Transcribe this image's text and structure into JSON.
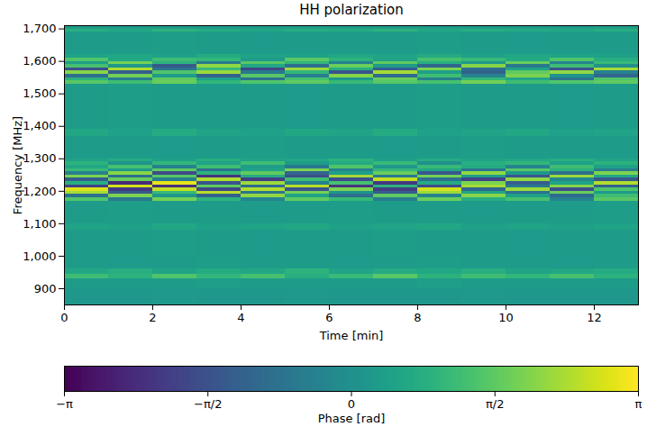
{
  "chart_data": {
    "type": "heatmap",
    "title": "HH polarization",
    "xlabel": "Time [min]",
    "ylabel": "Frequency [MHz]",
    "xlim": [
      0,
      13
    ],
    "ylim": [
      850,
      1710
    ],
    "xticks": [
      0,
      2,
      4,
      6,
      8,
      10,
      12
    ],
    "yticks": [
      900,
      1000,
      1100,
      1200,
      1300,
      1400,
      1500,
      1600,
      1700
    ],
    "color": "viridis",
    "x_edges": [
      0,
      1,
      2,
      3,
      4,
      5,
      6,
      7,
      8,
      9,
      10,
      11,
      12,
      13
    ],
    "y_edges": [
      850,
      900,
      930,
      945,
      960,
      1000,
      1080,
      1100,
      1170,
      1180,
      1190,
      1200,
      1210,
      1220,
      1230,
      1240,
      1250,
      1260,
      1270,
      1280,
      1290,
      1300,
      1370,
      1390,
      1530,
      1540,
      1550,
      1560,
      1570,
      1580,
      1590,
      1600,
      1610,
      1620,
      1690,
      1700,
      1710
    ],
    "values": [
      [
        0.2,
        0.2,
        0.25,
        0.2,
        0.2,
        0.25,
        0.2,
        0.2,
        0.2,
        0.25,
        0.2,
        0.2,
        0.2
      ],
      [
        0.3,
        0.3,
        0.3,
        0.35,
        0.3,
        0.3,
        0.3,
        0.3,
        0.35,
        0.3,
        0.3,
        0.3,
        0.3
      ],
      [
        1.2,
        0.9,
        1.4,
        1.0,
        1.3,
        0.8,
        1.1,
        1.5,
        0.9,
        1.2,
        1.0,
        1.3,
        0.9
      ],
      [
        0.6,
        0.8,
        0.5,
        0.7,
        0.6,
        0.9,
        0.5,
        0.7,
        0.6,
        0.8,
        0.5,
        0.6,
        0.7
      ],
      [
        0.3,
        0.28,
        0.3,
        0.32,
        0.3,
        0.3,
        0.28,
        0.3,
        0.32,
        0.3,
        0.3,
        0.28,
        0.3
      ],
      [
        0.3,
        0.3,
        0.32,
        0.3,
        0.28,
        0.3,
        0.3,
        0.32,
        0.3,
        0.3,
        0.28,
        0.3,
        0.3
      ],
      [
        0.5,
        0.4,
        0.6,
        0.4,
        0.5,
        0.6,
        0.4,
        0.5,
        0.6,
        0.4,
        0.5,
        0.4,
        0.5
      ],
      [
        0.3,
        0.32,
        0.3,
        0.3,
        0.28,
        0.3,
        0.32,
        0.3,
        0.3,
        0.28,
        0.3,
        0.3,
        0.32
      ],
      [
        1.4,
        -0.6,
        1.8,
        0.9,
        -0.3,
        1.6,
        1.1,
        -0.5,
        1.7,
        0.8,
        1.3,
        -0.4,
        1.5
      ],
      [
        -0.8,
        1.9,
        0.2,
        -1.2,
        2.1,
        0.5,
        -0.9,
        1.6,
        -0.3,
        2.0,
        0.4,
        -1.0,
        1.2
      ],
      [
        2.3,
        -1.4,
        1.1,
        2.5,
        -0.7,
        1.8,
        0.1,
        -1.3,
        2.2,
        0.6,
        -0.8,
        1.7,
        0.3
      ],
      [
        2.8,
        -2.1,
        2.6,
        -1.8,
        2.4,
        -1.5,
        1.9,
        -2.0,
        2.7,
        -1.1,
        2.2,
        -1.6,
        1.4
      ],
      [
        -1.9,
        2.7,
        -2.3,
        1.6,
        -1.0,
        2.5,
        -2.2,
        0.9,
        -1.7,
        2.3,
        -0.6,
        2.0,
        -1.2
      ],
      [
        0.8,
        -2.4,
        2.9,
        -1.5,
        2.2,
        -0.4,
        1.3,
        -2.1,
        0.7,
        1.9,
        -1.3,
        0.5,
        2.4
      ],
      [
        -1.3,
        1.7,
        -0.5,
        2.4,
        -2.0,
        1.2,
        -1.6,
        2.6,
        -0.8,
        -1.9,
        2.1,
        -0.2,
        -1.4
      ],
      [
        1.9,
        -0.9,
        1.5,
        -2.2,
        0.7,
        -1.7,
        2.3,
        -0.6,
        1.8,
        0.3,
        -1.5,
        2.2,
        0.6
      ],
      [
        -0.4,
        2.0,
        -1.7,
        0.9,
        1.6,
        -1.1,
        0.4,
        1.7,
        -1.4,
        2.1,
        0.2,
        -0.9,
        1.9
      ],
      [
        1.1,
        0.2,
        1.6,
        -0.8,
        0.5,
        1.9,
        -0.3,
        1.0,
        0.6,
        -0.7,
        1.5,
        0.9,
        -0.5
      ],
      [
        0.6,
        1.3,
        -0.4,
        1.2,
        0.3,
        -0.6,
        1.4,
        0.2,
        1.1,
        0.7,
        -0.3,
        1.2,
        0.4
      ],
      [
        0.9,
        0.1,
        1.0,
        0.5,
        1.2,
        0.3,
        0.7,
        1.1,
        0.0,
        0.8,
        1.0,
        0.4,
        0.9
      ],
      [
        0.5,
        0.7,
        0.4,
        0.8,
        0.5,
        0.6,
        0.9,
        0.4,
        0.7,
        0.5,
        0.6,
        0.8,
        0.5
      ],
      [
        0.3,
        0.3,
        0.28,
        0.3,
        0.32,
        0.3,
        0.3,
        0.28,
        0.3,
        0.32,
        0.3,
        0.3,
        0.3
      ],
      [
        0.6,
        0.4,
        0.7,
        0.5,
        0.4,
        0.6,
        0.5,
        0.7,
        0.4,
        0.5,
        0.6,
        0.4,
        0.5
      ],
      [
        0.3,
        0.32,
        0.3,
        0.3,
        0.3,
        0.28,
        0.3,
        0.3,
        0.32,
        0.3,
        0.3,
        0.28,
        0.3
      ],
      [
        1.5,
        1.2,
        1.7,
        1.0,
        1.4,
        1.6,
        1.1,
        1.5,
        1.3,
        1.8,
        1.2,
        1.4,
        1.6
      ],
      [
        0.9,
        -0.5,
        1.6,
        0.4,
        -0.8,
        1.3,
        0.2,
        1.7,
        -0.4,
        1.0,
        0.6,
        -0.7,
        1.4
      ],
      [
        -0.9,
        1.8,
        0.3,
        -1.2,
        1.5,
        -0.5,
        2.0,
        -1.0,
        1.2,
        -0.3,
        1.9,
        0.1,
        -1.1
      ],
      [
        2.0,
        -1.3,
        1.4,
        2.2,
        -0.6,
        1.0,
        -1.5,
        2.3,
        0.4,
        -1.2,
        1.6,
        2.1,
        -0.4
      ],
      [
        -1.6,
        2.4,
        -0.7,
        1.1,
        -1.8,
        2.2,
        0.8,
        -1.3,
        1.9,
        -0.9,
        0.5,
        -1.5,
        2.3
      ],
      [
        1.3,
        0.2,
        -1.4,
        2.1,
        0.6,
        -0.9,
        1.7,
        0.3,
        -1.1,
        2.0,
        -0.6,
        1.2,
        0.0
      ],
      [
        0.4,
        1.8,
        0.9,
        -0.6,
        1.5,
        1.0,
        -0.4,
        1.6,
        0.8,
        0.2,
        1.7,
        -0.3,
        1.1
      ],
      [
        1.4,
        0.6,
        1.2,
        1.0,
        0.3,
        1.5,
        0.9,
        0.5,
        1.3,
        1.1,
        0.7,
        1.4,
        0.8
      ],
      [
        0.5,
        0.6,
        0.4,
        0.7,
        0.5,
        0.4,
        0.6,
        0.5,
        0.7,
        0.4,
        0.6,
        0.5,
        0.4
      ],
      [
        0.3,
        0.3,
        0.32,
        0.3,
        0.28,
        0.3,
        0.3,
        0.3,
        0.32,
        0.3,
        0.28,
        0.3,
        0.3
      ],
      [
        0.8,
        0.6,
        0.9,
        0.7,
        0.6,
        0.8,
        0.7,
        0.9,
        0.6,
        0.8,
        0.7,
        0.6,
        0.8
      ],
      [
        0.3,
        0.3,
        0.3,
        0.28,
        0.3,
        0.32,
        0.3,
        0.3,
        0.3,
        0.28,
        0.3,
        0.3,
        0.32
      ]
    ],
    "colorbar": {
      "label": "Phase [rad]",
      "range": [
        -3.14159,
        3.14159
      ],
      "ticks": [
        {
          "value": -3.14159,
          "label": "−π"
        },
        {
          "value": -1.5708,
          "label": "−π/2"
        },
        {
          "value": 0,
          "label": "0"
        },
        {
          "value": 1.5708,
          "label": "π/2"
        },
        {
          "value": 3.14159,
          "label": "π"
        }
      ]
    }
  }
}
